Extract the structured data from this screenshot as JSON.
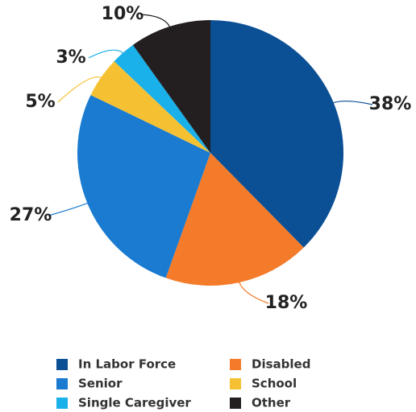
{
  "chart_data": {
    "type": "pie",
    "categories": [
      "In Labor Force",
      "Disabled",
      "Senior",
      "School",
      "Single Caregiver",
      "Other"
    ],
    "values": [
      38,
      18,
      27,
      5,
      3,
      10
    ],
    "value_labels": [
      "38%",
      "18%",
      "27%",
      "5%",
      "3%",
      "10%"
    ],
    "colors": [
      "#0b4f94",
      "#f47b2a",
      "#1a7bd0",
      "#f5c133",
      "#1ab0ea",
      "#231f20"
    ],
    "legend": "bottom"
  }
}
